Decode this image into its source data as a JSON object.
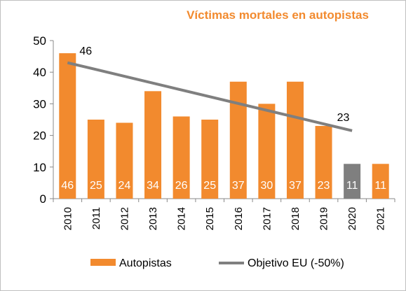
{
  "chart_data": {
    "type": "bar",
    "title": "Víctimas mortales en autopistas",
    "categories": [
      "2010",
      "2011",
      "2012",
      "2013",
      "2014",
      "2015",
      "2016",
      "2017",
      "2018",
      "2019",
      "2020",
      "2021"
    ],
    "series": [
      {
        "name": "Autopistas",
        "values": [
          46,
          25,
          24,
          34,
          26,
          25,
          37,
          30,
          37,
          23,
          11,
          11
        ],
        "color": "#f28a2e",
        "highlight": {
          "category": "2020",
          "color": "#7f7f7f"
        }
      },
      {
        "name": "Objetivo EU (-50%)",
        "type": "line",
        "x": [
          "2010",
          "2020"
        ],
        "values": [
          43,
          21.5
        ],
        "color": "#7f7f7f"
      }
    ],
    "annotations": [
      {
        "category": "2010",
        "text": "46"
      },
      {
        "category": "2019",
        "text": "23"
      }
    ],
    "ylim": [
      0,
      50
    ],
    "yticks": [
      0,
      10,
      20,
      30,
      40,
      50
    ],
    "grid": false,
    "legend": "bottom"
  }
}
